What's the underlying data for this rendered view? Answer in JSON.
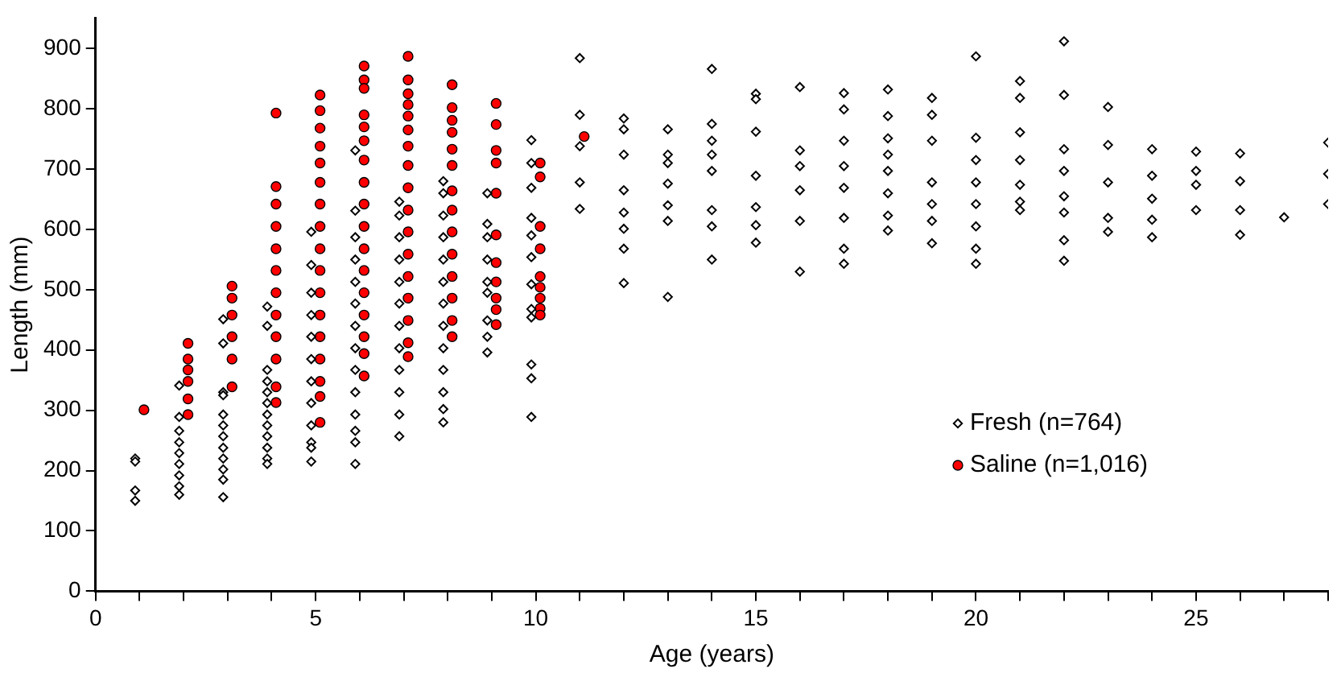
{
  "chart_data": {
    "type": "scatter",
    "xlabel": "Age (years)",
    "ylabel": "Length (mm)",
    "xlim": [
      0,
      28
    ],
    "ylim": [
      0,
      950
    ],
    "xticks": [
      0,
      {
        "value": 1,
        "label": null
      },
      {
        "value": 2,
        "label": null
      },
      {
        "value": 3,
        "label": null
      },
      {
        "value": 4,
        "label": null
      },
      5,
      {
        "value": 6,
        "label": null
      },
      {
        "value": 7,
        "label": null
      },
      {
        "value": 8,
        "label": null
      },
      {
        "value": 9,
        "label": null
      },
      10,
      {
        "value": 11,
        "label": null
      },
      {
        "value": 12,
        "label": null
      },
      {
        "value": 13,
        "label": null
      },
      {
        "value": 14,
        "label": null
      },
      15,
      {
        "value": 16,
        "label": null
      },
      {
        "value": 17,
        "label": null
      },
      {
        "value": 18,
        "label": null
      },
      {
        "value": 19,
        "label": null
      },
      20,
      {
        "value": 21,
        "label": null
      },
      {
        "value": 22,
        "label": null
      },
      {
        "value": 23,
        "label": null
      },
      {
        "value": 24,
        "label": null
      },
      25,
      {
        "value": 26,
        "label": null
      },
      {
        "value": 27,
        "label": null
      },
      {
        "value": 28,
        "label": null
      }
    ],
    "yticks": [
      0,
      100,
      200,
      300,
      400,
      500,
      600,
      700,
      800,
      900
    ],
    "grid": false,
    "legend": "bottom right",
    "series": [
      {
        "name": "Fresh (n=764)",
        "color": "#000000",
        "marker": "diamond",
        "x": [
          0.9,
          0.9,
          0.9,
          0.9,
          1.9,
          1.9,
          1.9,
          1.9,
          1.9,
          1.9,
          1.9,
          1.9,
          1.9,
          2.9,
          2.9,
          2.9,
          2.9,
          2.9,
          2.9,
          2.9,
          2.9,
          2.9,
          2.9,
          2.9,
          2.9,
          3.9,
          3.9,
          3.9,
          3.9,
          3.9,
          3.9,
          3.9,
          3.9,
          3.9,
          3.9,
          3.9,
          3.9,
          4.9,
          4.9,
          4.9,
          4.9,
          4.9,
          4.9,
          4.9,
          4.9,
          4.9,
          4.9,
          4.9,
          4.9,
          5.9,
          5.9,
          5.9,
          5.9,
          5.9,
          5.9,
          5.9,
          5.9,
          5.9,
          5.9,
          5.9,
          5.9,
          5.9,
          5.9,
          6.9,
          6.9,
          6.9,
          6.9,
          6.9,
          6.9,
          6.9,
          6.9,
          6.9,
          6.9,
          6.9,
          6.9,
          7.9,
          7.9,
          7.9,
          7.9,
          7.9,
          7.9,
          7.9,
          7.9,
          7.9,
          7.9,
          7.9,
          7.9,
          7.9,
          8.9,
          8.9,
          8.9,
          8.9,
          8.9,
          8.9,
          8.9,
          8.9,
          8.9,
          9.9,
          9.9,
          9.9,
          9.9,
          9.9,
          9.9,
          9.9,
          9.9,
          9.9,
          9.9,
          9.9,
          9.9,
          11,
          11,
          11,
          11,
          11,
          12,
          12,
          12,
          12,
          12,
          12,
          12,
          12,
          13,
          13,
          13,
          13,
          13,
          13,
          13,
          14,
          14,
          14,
          14,
          14,
          14,
          14,
          14,
          15,
          15,
          15,
          15,
          15,
          15,
          15,
          16,
          16,
          16,
          16,
          16,
          16,
          17,
          17,
          17,
          17,
          17,
          17,
          17,
          17,
          18,
          18,
          18,
          18,
          18,
          18,
          18,
          18,
          19,
          19,
          19,
          19,
          19,
          19,
          19,
          20,
          20,
          20,
          20,
          20,
          20,
          20,
          20,
          21,
          21,
          21,
          21,
          21,
          21,
          21,
          22,
          22,
          22,
          22,
          22,
          22,
          22,
          22,
          23,
          23,
          23,
          23,
          23,
          24,
          24,
          24,
          24,
          24,
          25,
          25,
          25,
          25,
          26,
          26,
          26,
          26,
          27,
          28,
          28,
          28
        ],
        "values": [
          220,
          215,
          167,
          150,
          341,
          289,
          266,
          247,
          229,
          211,
          192,
          174,
          160,
          451,
          411,
          330,
          325,
          293,
          275,
          257,
          238,
          220,
          202,
          185,
          156,
          472,
          440,
          367,
          348,
          330,
          312,
          293,
          275,
          257,
          238,
          220,
          211,
          596,
          541,
          495,
          458,
          422,
          385,
          348,
          312,
          275,
          247,
          238,
          215,
          731,
          631,
          587,
          550,
          513,
          477,
          440,
          403,
          367,
          330,
          293,
          266,
          247,
          211,
          646,
          623,
          587,
          550,
          513,
          477,
          440,
          403,
          367,
          330,
          293,
          257,
          680,
          660,
          623,
          587,
          550,
          513,
          477,
          440,
          403,
          367,
          330,
          302,
          280,
          660,
          609,
          587,
          550,
          513,
          495,
          449,
          422,
          396,
          748,
          710,
          669,
          619,
          590,
          554,
          509,
          468,
          454,
          376,
          353,
          289,
          884,
          790,
          738,
          678,
          634,
          784,
          766,
          724,
          665,
          628,
          601,
          568,
          511,
          766,
          724,
          710,
          676,
          640,
          614,
          488,
          866,
          775,
          747,
          724,
          697,
          632,
          605,
          550,
          825,
          816,
          762,
          689,
          637,
          607,
          578,
          836,
          731,
          705,
          665,
          614,
          530,
          826,
          799,
          747,
          705,
          669,
          619,
          568,
          543,
          832,
          788,
          751,
          724,
          697,
          660,
          623,
          598,
          818,
          790,
          747,
          678,
          642,
          614,
          577,
          887,
          752,
          715,
          678,
          642,
          605,
          568,
          543,
          846,
          818,
          761,
          715,
          674,
          646,
          632,
          912,
          823,
          733,
          697,
          655,
          628,
          582,
          548,
          803,
          740,
          678,
          619,
          596,
          733,
          689,
          651,
          616,
          587,
          729,
          697,
          674,
          632,
          726,
          680,
          632,
          591,
          620,
          744,
          692,
          642
        ]
      },
      {
        "name": "Saline (n=1,016)",
        "color": "#ff0000",
        "marker": "circle",
        "x": [
          1.1,
          2.1,
          2.1,
          2.1,
          2.1,
          2.1,
          2.1,
          3.1,
          3.1,
          3.1,
          3.1,
          3.1,
          3.1,
          4.1,
          4.1,
          4.1,
          4.1,
          4.1,
          4.1,
          4.1,
          4.1,
          4.1,
          4.1,
          4.1,
          4.1,
          5.1,
          5.1,
          5.1,
          5.1,
          5.1,
          5.1,
          5.1,
          5.1,
          5.1,
          5.1,
          5.1,
          5.1,
          5.1,
          5.1,
          5.1,
          5.1,
          5.1,
          6.1,
          6.1,
          6.1,
          6.1,
          6.1,
          6.1,
          6.1,
          6.1,
          6.1,
          6.1,
          6.1,
          6.1,
          6.1,
          6.1,
          6.1,
          6.1,
          6.1,
          7.1,
          7.1,
          7.1,
          7.1,
          7.1,
          7.1,
          7.1,
          7.1,
          7.1,
          7.1,
          7.1,
          7.1,
          7.1,
          7.1,
          7.1,
          7.1,
          7.1,
          8.1,
          8.1,
          8.1,
          8.1,
          8.1,
          8.1,
          8.1,
          8.1,
          8.1,
          8.1,
          8.1,
          8.1,
          8.1,
          8.1,
          9.1,
          9.1,
          9.1,
          9.1,
          9.1,
          9.1,
          9.1,
          9.1,
          9.1,
          9.1,
          9.1,
          10.1,
          10.1,
          10.1,
          10.1,
          10.1,
          10.1,
          10.1,
          10.1,
          10.1,
          11.1
        ],
        "values": [
          301,
          411,
          385,
          367,
          348,
          319,
          293,
          506,
          486,
          458,
          422,
          385,
          339,
          793,
          671,
          642,
          605,
          568,
          532,
          495,
          458,
          422,
          385,
          339,
          313,
          823,
          797,
          768,
          738,
          710,
          678,
          642,
          605,
          568,
          532,
          495,
          458,
          422,
          385,
          348,
          323,
          280,
          871,
          848,
          834,
          790,
          770,
          747,
          715,
          678,
          642,
          605,
          568,
          532,
          495,
          458,
          422,
          394,
          357,
          887,
          848,
          825,
          807,
          788,
          765,
          738,
          706,
          669,
          632,
          596,
          559,
          522,
          486,
          449,
          412,
          389,
          840,
          802,
          781,
          761,
          733,
          706,
          664,
          632,
          596,
          559,
          522,
          486,
          449,
          422,
          809,
          774,
          731,
          710,
          660,
          591,
          545,
          513,
          486,
          467,
          442,
          710,
          687,
          605,
          568,
          522,
          504,
          486,
          469,
          458,
          754
        ]
      }
    ]
  }
}
